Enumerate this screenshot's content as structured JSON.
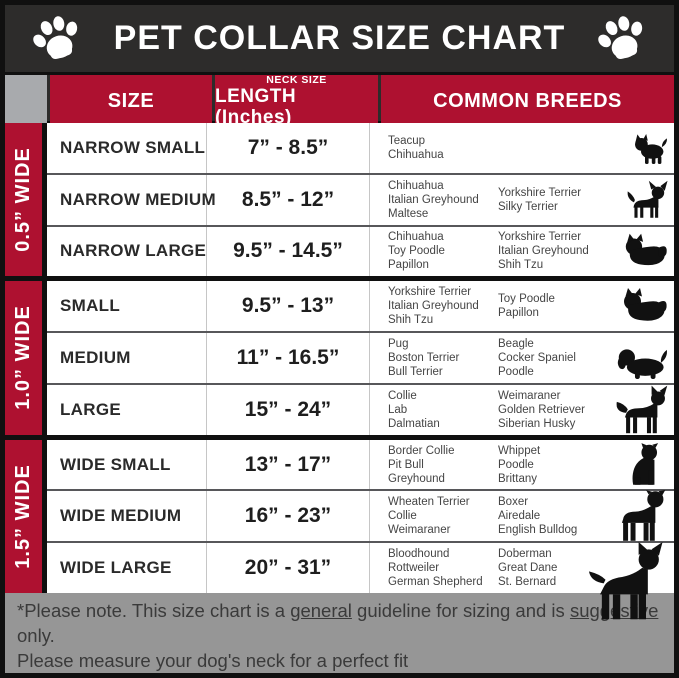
{
  "title": "PET COLLAR SIZE CHART",
  "colors": {
    "accent_red": "#ae1130",
    "title_bar_charcoal": "#2d2c2b",
    "corner_gray": "#a8aaad",
    "footer_gray": "#969696",
    "border_black": "#101010"
  },
  "header": {
    "size": "SIZE",
    "neck_small": "NECK SIZE",
    "neck_big": "LENGTH (Inches)",
    "breeds": "COMMON BREEDS"
  },
  "chart_data": {
    "type": "table",
    "title": "PET COLLAR SIZE CHART",
    "columns": [
      "SIZE",
      "NECK SIZE LENGTH (Inches)",
      "COMMON BREEDS"
    ],
    "groups": [
      {
        "width_label": "0.5” WIDE",
        "rows": [
          {
            "size": "NARROW SMALL",
            "length": "7” - 8.5”",
            "breeds_col1": [
              "Teacup",
              "Chihuahua"
            ],
            "breeds_col2": [],
            "icon": "yorkie-icon"
          },
          {
            "size": "NARROW MEDIUM",
            "length": "8.5” - 12”",
            "breeds_col1": [
              "Chihuahua",
              "Italian Greyhound",
              "Maltese"
            ],
            "breeds_col2": [
              "Yorkshire Terrier",
              "Silky Terrier"
            ],
            "icon": "chihuahua-icon"
          },
          {
            "size": "NARROW LARGE",
            "length": "9.5” - 14.5”",
            "breeds_col1": [
              "Chihuahua",
              "Toy Poodle",
              "Papillon"
            ],
            "breeds_col2": [
              "Yorkshire Terrier",
              "Italian Greyhound",
              "Shih Tzu"
            ],
            "icon": "pekingese-icon"
          }
        ]
      },
      {
        "width_label": "1.0” WIDE",
        "rows": [
          {
            "size": "SMALL",
            "length": "9.5” - 13”",
            "breeds_col1": [
              "Yorkshire Terrier",
              "Italian Greyhound",
              "Shih Tzu"
            ],
            "breeds_col2": [
              "Toy Poodle",
              "Papillon"
            ],
            "icon": "shih-tzu-icon"
          },
          {
            "size": "MEDIUM",
            "length": "11” - 16.5”",
            "breeds_col1": [
              "Pug",
              "Boston Terrier",
              "Bull Terrier"
            ],
            "breeds_col2": [
              "Beagle",
              "Cocker Spaniel",
              "Poodle"
            ],
            "icon": "beagle-icon"
          },
          {
            "size": "LARGE",
            "length": "15” - 24”",
            "breeds_col1": [
              "Collie",
              "Lab",
              "Dalmatian"
            ],
            "breeds_col2": [
              "Weimaraner",
              "Golden Retriever",
              "Siberian Husky"
            ],
            "icon": "husky-icon"
          }
        ]
      },
      {
        "width_label": "1.5” WIDE",
        "rows": [
          {
            "size": "WIDE SMALL",
            "length": "13” - 17”",
            "breeds_col1": [
              "Border Collie",
              "Pit Bull",
              "Greyhound"
            ],
            "breeds_col2": [
              "Whippet",
              "Poodle",
              "Brittany"
            ],
            "icon": "pitbull-icon"
          },
          {
            "size": "WIDE MEDIUM",
            "length": "16” - 23”",
            "breeds_col1": [
              "Wheaten Terrier",
              "Collie",
              "Weimaraner"
            ],
            "breeds_col2": [
              "Boxer",
              "Airedale",
              "English Bulldog"
            ],
            "icon": "boxer-icon"
          },
          {
            "size": "WIDE LARGE",
            "length": "20” - 31”",
            "breeds_col1": [
              "Bloodhound",
              "Rottweiler",
              "German Shepherd"
            ],
            "breeds_col2": [
              "Doberman",
              "Great Dane",
              "St. Bernard"
            ],
            "icon": "doberman-icon"
          }
        ]
      }
    ],
    "footnote_line1_segments": [
      {
        "text": "*Please note. This size chart is a ",
        "underline": false
      },
      {
        "text": "general",
        "underline": true
      },
      {
        "text": " guideline for sizing and is ",
        "underline": false
      },
      {
        "text": "suggestive",
        "underline": true
      },
      {
        "text": " only.",
        "underline": false
      }
    ],
    "footnote_line2": "Please measure your dog's neck for a perfect fit"
  }
}
